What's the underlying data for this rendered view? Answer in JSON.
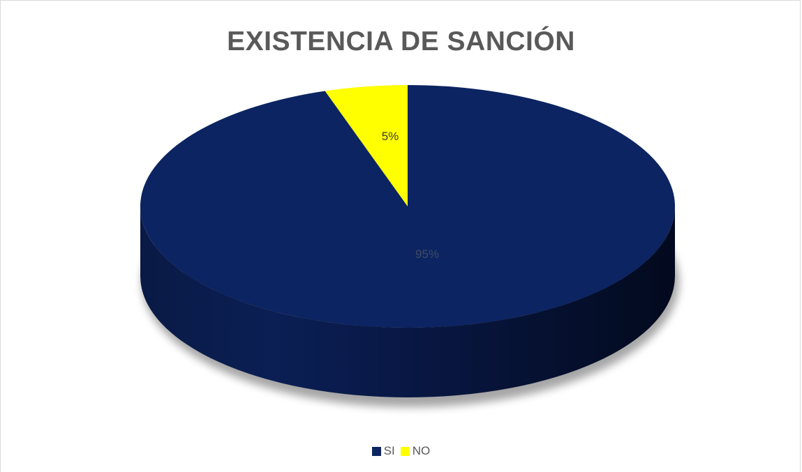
{
  "chart_data": {
    "type": "pie",
    "title": "EXISTENCIA DE SANCIÓN",
    "categories": [
      "SI",
      "NO"
    ],
    "values": [
      95,
      5
    ],
    "data_labels": [
      "95%",
      "5%"
    ],
    "colors": [
      "#0c2461",
      "#ffff00"
    ],
    "label_colors": [
      "#404a63",
      "#3a3a3a"
    ],
    "style": "3d",
    "legend_position": "bottom"
  }
}
